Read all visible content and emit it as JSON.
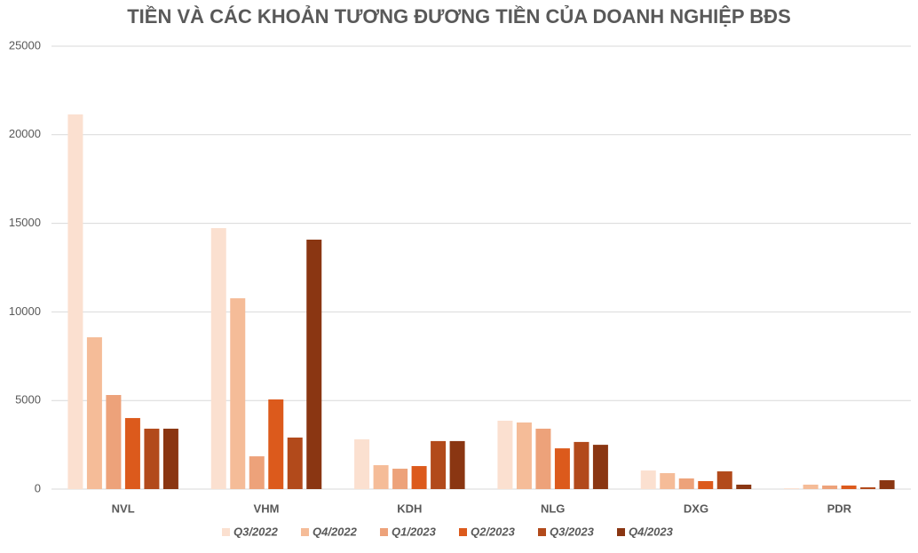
{
  "chart_data": {
    "type": "bar",
    "title": "TIỀN VÀ CÁC KHOẢN TƯƠNG ĐƯƠNG TIỀN CỦA DOANH NGHIỆP BĐS",
    "categories": [
      "NVL",
      "VHM",
      "KDH",
      "NLG",
      "DXG",
      "PDR"
    ],
    "series": [
      {
        "name": "Q3/2022",
        "color": "#fbe0d0",
        "values": [
          21150,
          14730,
          2810,
          3860,
          1050,
          50
        ]
      },
      {
        "name": "Q4/2022",
        "color": "#f5bc98",
        "values": [
          8570,
          10770,
          1350,
          3760,
          900,
          250
        ]
      },
      {
        "name": "Q1/2023",
        "color": "#eda27a",
        "values": [
          5310,
          1850,
          1150,
          3410,
          600,
          200
        ]
      },
      {
        "name": "Q2/2023",
        "color": "#dc5a1c",
        "values": [
          4010,
          5060,
          1300,
          2300,
          450,
          200
        ]
      },
      {
        "name": "Q3/2023",
        "color": "#b24a1b",
        "values": [
          3410,
          2910,
          2710,
          2660,
          1000,
          100
        ]
      },
      {
        "name": "Q4/2023",
        "color": "#8a3612",
        "values": [
          3410,
          14080,
          2710,
          2500,
          250,
          500
        ]
      }
    ],
    "ylim": [
      0,
      25000
    ],
    "yticks": [
      0,
      5000,
      10000,
      15000,
      20000,
      25000
    ],
    "grid": true,
    "legend": "bottom"
  }
}
